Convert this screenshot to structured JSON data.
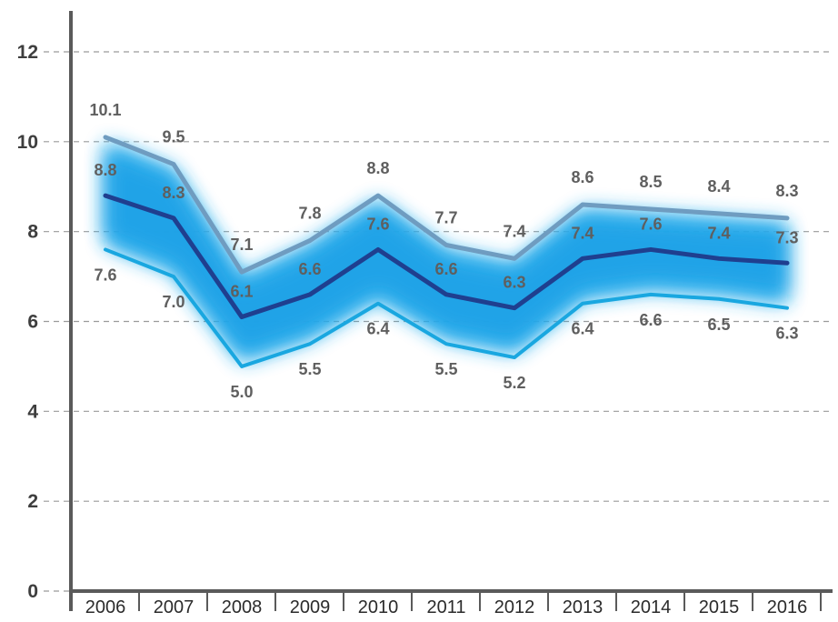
{
  "chart_data": {
    "type": "line",
    "title": "",
    "xlabel": "",
    "ylabel": "",
    "x": [
      "2006",
      "2007",
      "2008",
      "2009",
      "2010",
      "2011",
      "2012",
      "2013",
      "2014",
      "2015",
      "2016"
    ],
    "ylim": [
      0,
      12
    ],
    "yticks": [
      "0",
      "2",
      "4",
      "6",
      "8",
      "10",
      "12"
    ],
    "grid": "horizontal-dashed",
    "legend": "none",
    "series": [
      {
        "role": "upper",
        "color": "#6f9cc0",
        "values": [
          10.1,
          9.5,
          7.1,
          7.8,
          8.8,
          7.7,
          7.4,
          8.6,
          8.5,
          8.4,
          8.3
        ],
        "labels": [
          "10.1",
          "9.5",
          "7.1",
          "7.8",
          "8.8",
          "7.7",
          "7.4",
          "8.6",
          "8.5",
          "8.4",
          "8.3"
        ]
      },
      {
        "role": "central",
        "color": "#1f3f8f",
        "values": [
          8.8,
          8.3,
          6.1,
          6.6,
          7.6,
          6.6,
          6.3,
          7.4,
          7.6,
          7.4,
          7.3
        ],
        "labels": [
          "8.8",
          "8.3",
          "6.1",
          "6.6",
          "7.6",
          "6.6",
          "6.3",
          "7.4",
          "7.6",
          "7.4",
          "7.3"
        ]
      },
      {
        "role": "lower",
        "color": "#19a7e0",
        "values": [
          7.6,
          7.0,
          5.0,
          5.5,
          6.4,
          5.5,
          5.2,
          6.4,
          6.6,
          6.5,
          6.3
        ],
        "labels": [
          "7.6",
          "7.0",
          "5.0",
          "5.5",
          "6.4",
          "5.5",
          "5.2",
          "6.4",
          "6.6",
          "6.5",
          "6.3"
        ]
      }
    ],
    "band_color": "#2fb2ee"
  }
}
